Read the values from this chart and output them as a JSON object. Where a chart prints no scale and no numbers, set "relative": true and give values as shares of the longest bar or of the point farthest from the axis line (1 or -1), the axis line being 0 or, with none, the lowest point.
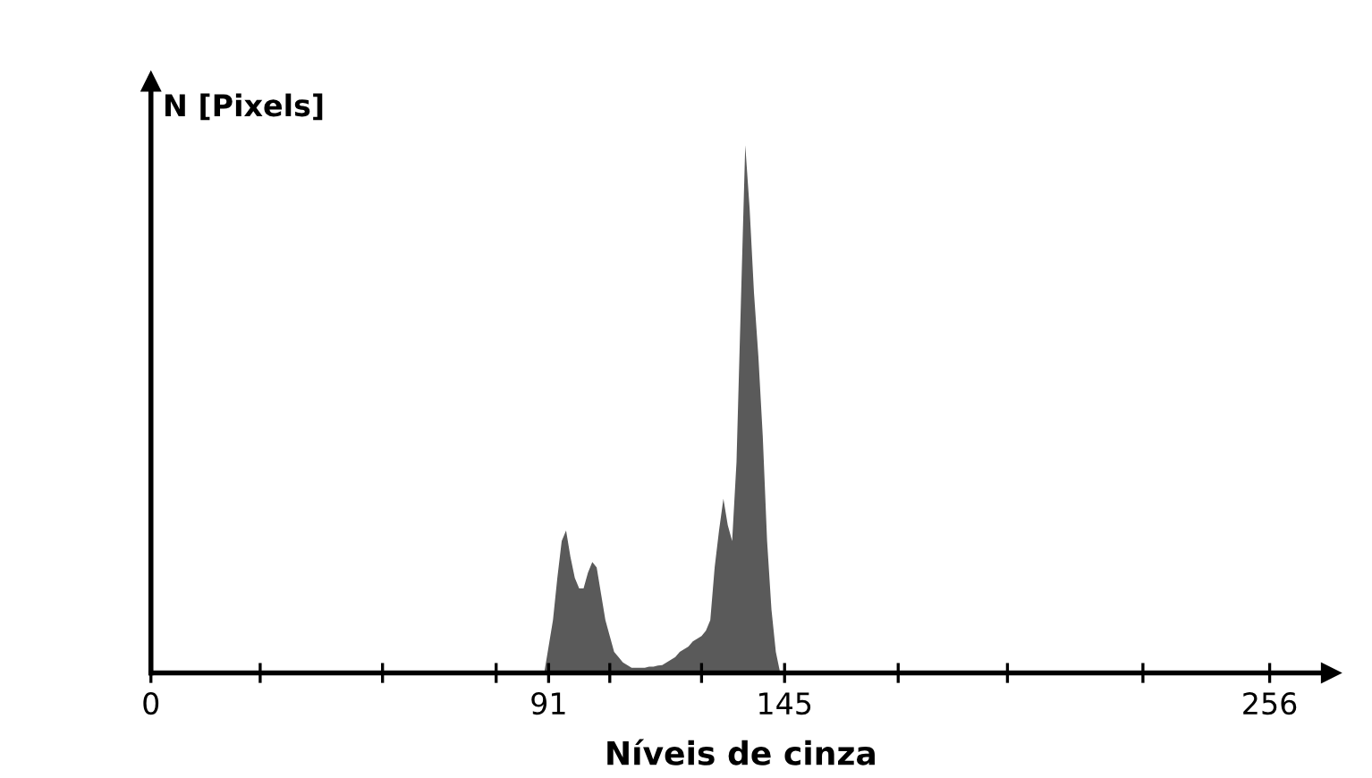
{
  "chart_data": {
    "type": "area",
    "ylabel": "N [Pixels]",
    "xlabel": "Níveis de cinza",
    "relative": true,
    "color": "#5a5a5a",
    "xlim": [
      0,
      270
    ],
    "xticks": [
      0,
      {
        "value": 25,
        "label": null
      },
      {
        "value": 53,
        "label": null
      },
      {
        "value": 79,
        "label": null
      },
      91,
      {
        "value": 105,
        "label": null
      },
      {
        "value": 126,
        "label": null
      },
      145,
      {
        "value": 171,
        "label": null
      },
      {
        "value": 196,
        "label": null
      },
      {
        "value": 227,
        "label": null
      },
      256
    ],
    "x": [
      90,
      91,
      92,
      93,
      94,
      95,
      96,
      97,
      98,
      99,
      100,
      101,
      102,
      103,
      104,
      105,
      106,
      107,
      108,
      109,
      110,
      111,
      112,
      113,
      114,
      115,
      116,
      117,
      118,
      119,
      120,
      121,
      122,
      123,
      124,
      125,
      126,
      127,
      128,
      129,
      130,
      131,
      132,
      133,
      134,
      135,
      136,
      137,
      138,
      139,
      140,
      141,
      142,
      143,
      144
    ],
    "values": [
      0,
      0.05,
      0.1,
      0.18,
      0.25,
      0.27,
      0.22,
      0.18,
      0.16,
      0.16,
      0.19,
      0.21,
      0.2,
      0.15,
      0.1,
      0.07,
      0.04,
      0.03,
      0.02,
      0.015,
      0.01,
      0.01,
      0.01,
      0.01,
      0.012,
      0.012,
      0.014,
      0.015,
      0.02,
      0.025,
      0.03,
      0.04,
      0.045,
      0.05,
      0.06,
      0.065,
      0.07,
      0.08,
      0.1,
      0.2,
      0.27,
      0.33,
      0.28,
      0.25,
      0.4,
      0.7,
      1,
      0.88,
      0.72,
      0.6,
      0.45,
      0.25,
      0.12,
      0.04,
      0
    ]
  }
}
